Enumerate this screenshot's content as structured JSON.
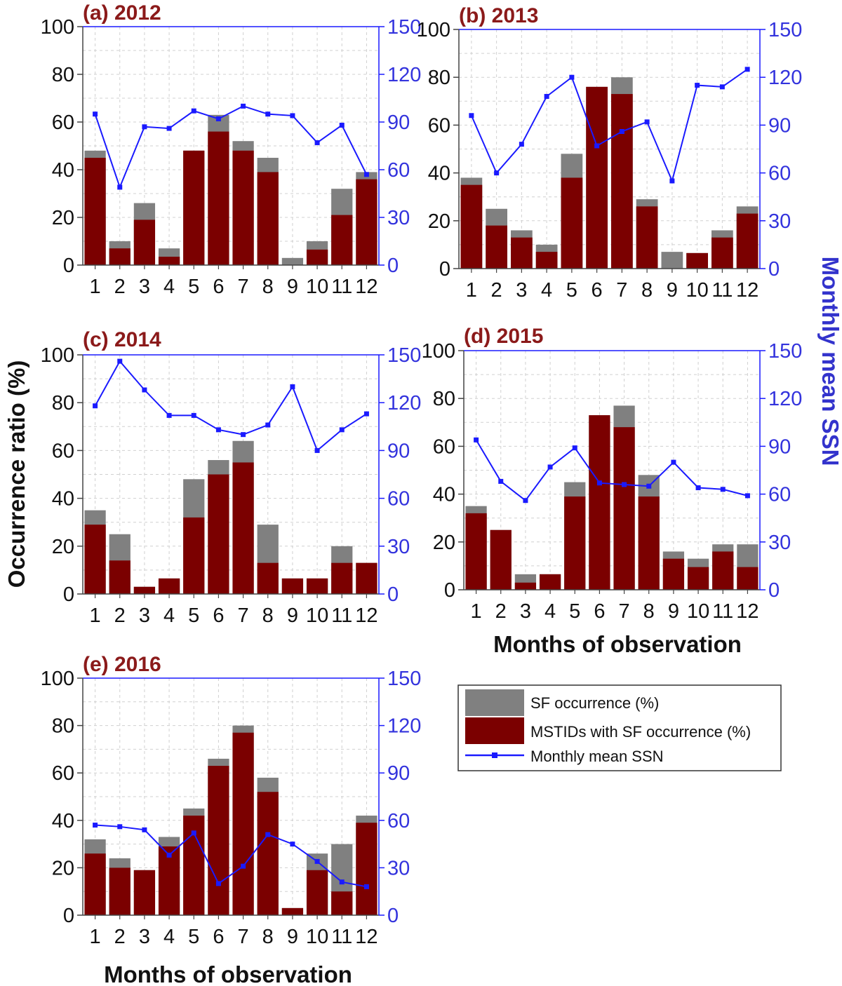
{
  "colors": {
    "sf": "#808080",
    "mstid": "#7b0000",
    "ssn": "#1a1aff",
    "title": "#8b1a1a",
    "right_axis": "#3333dd"
  },
  "chart_data": [
    {
      "type": "bar",
      "title": "(a) 2012",
      "categories": [
        "1",
        "2",
        "3",
        "4",
        "5",
        "6",
        "7",
        "8",
        "9",
        "10",
        "11",
        "12"
      ],
      "ylim": [
        0,
        100
      ],
      "y2lim": [
        0,
        150
      ],
      "yticks": [
        "0",
        "20",
        "40",
        "60",
        "80",
        "100"
      ],
      "y2ticks": [
        "0",
        "30",
        "60",
        "90",
        "120",
        "150"
      ],
      "series": [
        {
          "name": "SF occurrence (%)",
          "values": [
            48,
            10,
            26,
            7,
            48,
            63,
            52,
            45,
            3,
            10,
            32,
            39
          ]
        },
        {
          "name": "MSTIDs with SF occurrence (%)",
          "values": [
            45,
            7,
            19,
            3.5,
            48,
            56,
            48,
            39,
            0,
            6.5,
            21,
            36
          ]
        },
        {
          "name": "Monthly mean SSN",
          "axis": "right",
          "values": [
            95,
            49,
            87,
            86,
            97,
            92,
            100,
            95,
            94,
            77,
            88,
            57
          ]
        }
      ]
    },
    {
      "type": "bar",
      "title": "(b) 2013",
      "categories": [
        "1",
        "2",
        "3",
        "4",
        "5",
        "6",
        "7",
        "8",
        "9",
        "10",
        "11",
        "12"
      ],
      "ylim": [
        0,
        100
      ],
      "y2lim": [
        0,
        150
      ],
      "yticks": [
        "0",
        "20",
        "40",
        "60",
        "80",
        "100"
      ],
      "y2ticks": [
        "0",
        "30",
        "60",
        "90",
        "120",
        "150"
      ],
      "series": [
        {
          "name": "SF occurrence (%)",
          "values": [
            38,
            25,
            16,
            10,
            48,
            76,
            80,
            29,
            7,
            6.5,
            16,
            26
          ]
        },
        {
          "name": "MSTIDs with SF occurrence (%)",
          "values": [
            35,
            18,
            13,
            7,
            38,
            76,
            73,
            26,
            0,
            6.5,
            13,
            23
          ]
        },
        {
          "name": "Monthly mean SSN",
          "axis": "right",
          "values": [
            96,
            60,
            78,
            108,
            120,
            77,
            86,
            92,
            55,
            115,
            114,
            125
          ]
        }
      ]
    },
    {
      "type": "bar",
      "title": "(c) 2014",
      "categories": [
        "1",
        "2",
        "3",
        "4",
        "5",
        "6",
        "7",
        "8",
        "9",
        "10",
        "11",
        "12"
      ],
      "ylim": [
        0,
        100
      ],
      "y2lim": [
        0,
        150
      ],
      "yticks": [
        "0",
        "20",
        "40",
        "60",
        "80",
        "100"
      ],
      "y2ticks": [
        "0",
        "30",
        "60",
        "90",
        "120",
        "150"
      ],
      "ylabel": "Occurrence ratio (%)",
      "series": [
        {
          "name": "SF occurrence (%)",
          "values": [
            35,
            25,
            3,
            6.5,
            48,
            56,
            64,
            29,
            6.5,
            6.5,
            20,
            13
          ]
        },
        {
          "name": "MSTIDs with SF occurrence (%)",
          "values": [
            29,
            14,
            3,
            6.5,
            32,
            50,
            55,
            13,
            6.5,
            6.5,
            13,
            13
          ]
        },
        {
          "name": "Monthly mean SSN",
          "axis": "right",
          "values": [
            118,
            146,
            128,
            112,
            112,
            103,
            100,
            106,
            130,
            90,
            103,
            113
          ]
        }
      ]
    },
    {
      "type": "bar",
      "title": "(d) 2015",
      "categories": [
        "1",
        "2",
        "3",
        "4",
        "5",
        "6",
        "7",
        "8",
        "9",
        "10",
        "11",
        "12"
      ],
      "ylim": [
        0,
        100
      ],
      "y2lim": [
        0,
        150
      ],
      "yticks": [
        "0",
        "20",
        "40",
        "60",
        "80",
        "100"
      ],
      "y2ticks": [
        "0",
        "30",
        "60",
        "90",
        "120",
        "150"
      ],
      "xlabel": "Months of observation",
      "y2label": "Monthly mean SSN",
      "series": [
        {
          "name": "SF occurrence (%)",
          "values": [
            35,
            25,
            6.5,
            6.5,
            45,
            73,
            77,
            48,
            16,
            13,
            19,
            19
          ]
        },
        {
          "name": "MSTIDs with SF occurrence (%)",
          "values": [
            32,
            25,
            3,
            6.5,
            39,
            73,
            68,
            39,
            13,
            9.5,
            16,
            9.5
          ]
        },
        {
          "name": "Monthly mean SSN",
          "axis": "right",
          "values": [
            94,
            68,
            56,
            77,
            89,
            67,
            66,
            65,
            80,
            64,
            63,
            59
          ]
        }
      ]
    },
    {
      "type": "bar",
      "title": "(e) 2016",
      "categories": [
        "1",
        "2",
        "3",
        "4",
        "5",
        "6",
        "7",
        "8",
        "9",
        "10",
        "11",
        "12"
      ],
      "ylim": [
        0,
        100
      ],
      "y2lim": [
        0,
        150
      ],
      "yticks": [
        "0",
        "20",
        "40",
        "60",
        "80",
        "100"
      ],
      "y2ticks": [
        "0",
        "30",
        "60",
        "90",
        "120",
        "150"
      ],
      "xlabel": "Months of observation",
      "series": [
        {
          "name": "SF occurrence (%)",
          "values": [
            32,
            24,
            19,
            33,
            45,
            66,
            80,
            58,
            3,
            26,
            30,
            42
          ]
        },
        {
          "name": "MSTIDs with SF occurrence (%)",
          "values": [
            26,
            20,
            19,
            29,
            42,
            63,
            77,
            52,
            3,
            19,
            10,
            39
          ]
        },
        {
          "name": "Monthly mean SSN",
          "axis": "right",
          "values": [
            57,
            56,
            54,
            38,
            52,
            20,
            31,
            51,
            45,
            34,
            21,
            18
          ]
        }
      ]
    }
  ],
  "legend": {
    "items": [
      {
        "label": "SF occurrence (%)",
        "kind": "sf"
      },
      {
        "label": "MSTIDs with SF occurrence (%)",
        "kind": "mstid"
      },
      {
        "label": "Monthly mean SSN",
        "kind": "ssn"
      }
    ]
  }
}
